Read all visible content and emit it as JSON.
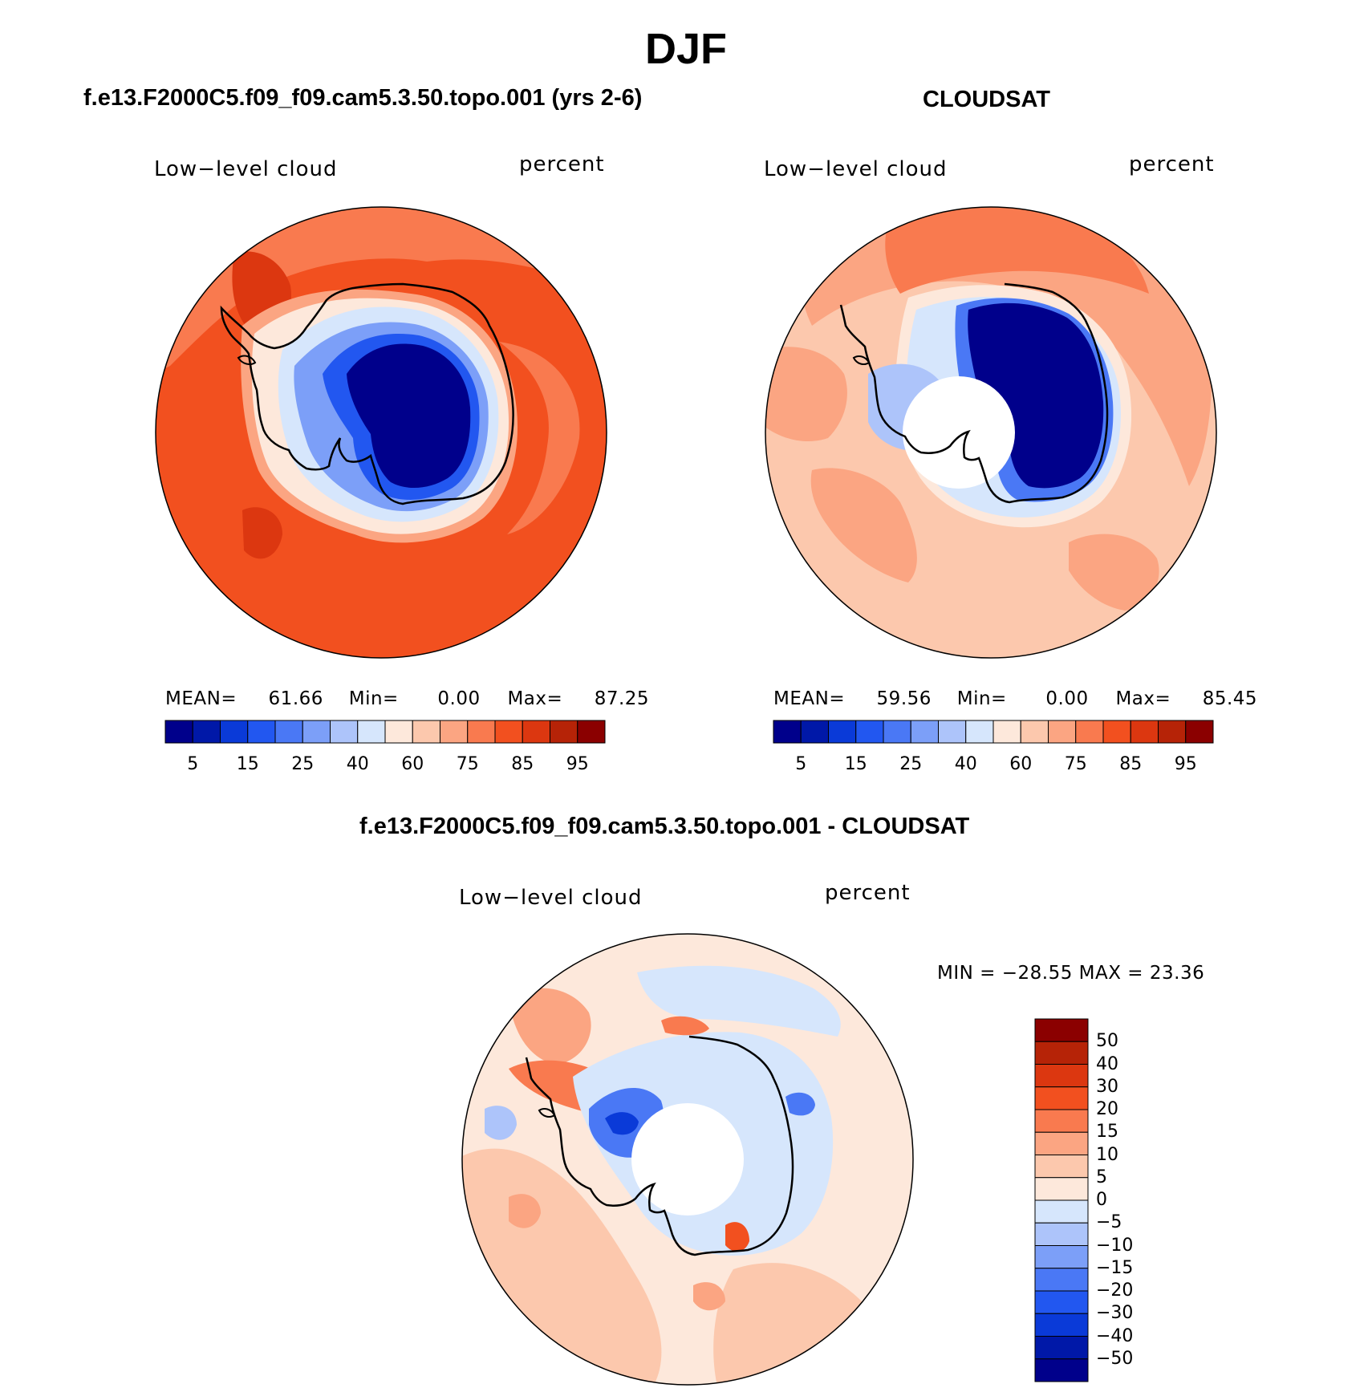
{
  "main_title": "DJF",
  "panels": [
    {
      "title": "f.e13.F2000C5.f09_f09.cam5.3.50.topo.001 (yrs 2-6)",
      "variable": "Low−level cloud",
      "units": "percent",
      "stats": {
        "mean_label": "MEAN=",
        "mean": "61.66",
        "min_label": "Min=",
        "min": "0.00",
        "max_label": "Max=",
        "max": "87.25"
      }
    },
    {
      "title": "CLOUDSAT",
      "variable": "Low−level cloud",
      "units": "percent",
      "stats": {
        "mean_label": "MEAN=",
        "mean": "59.56",
        "min_label": "Min=",
        "min": "0.00",
        "max_label": "Max=",
        "max": "85.45"
      }
    },
    {
      "title": "f.e13.F2000C5.f09_f09.cam5.3.50.topo.001 - CLOUDSAT",
      "variable": "Low−level cloud",
      "units": "percent",
      "minmax": "MIN = −28.55 MAX =   23.36"
    }
  ],
  "abs_colorbar": {
    "colors": [
      "#00008b",
      "#0018a8",
      "#0a3ad8",
      "#2257f0",
      "#4a78f5",
      "#7c9ff8",
      "#adc4fa",
      "#d6e6fc",
      "#fde8db",
      "#fcc8ad",
      "#fba582",
      "#f97a4f",
      "#f2501f",
      "#dc3710",
      "#b62307",
      "#8b0000"
    ],
    "tick_labels": [
      "5",
      "15",
      "25",
      "40",
      "60",
      "75",
      "85",
      "95"
    ]
  },
  "diff_colorbar": {
    "colors_top_to_bottom": [
      "#8b0000",
      "#b62307",
      "#dc3710",
      "#f2501f",
      "#f97a4f",
      "#fba582",
      "#fcc8ad",
      "#fde8db",
      "#d6e6fc",
      "#adc4fa",
      "#7c9ff8",
      "#4a78f5",
      "#2257f0",
      "#0a3ad8",
      "#0018a8",
      "#00008b"
    ],
    "tick_labels": [
      "50",
      "40",
      "30",
      "20",
      "15",
      "10",
      "5",
      "0",
      "−5",
      "−10",
      "−15",
      "−20",
      "−30",
      "−40",
      "−50"
    ]
  },
  "colors": {
    "land_outline": "#000000",
    "missing": "#ffffff"
  }
}
